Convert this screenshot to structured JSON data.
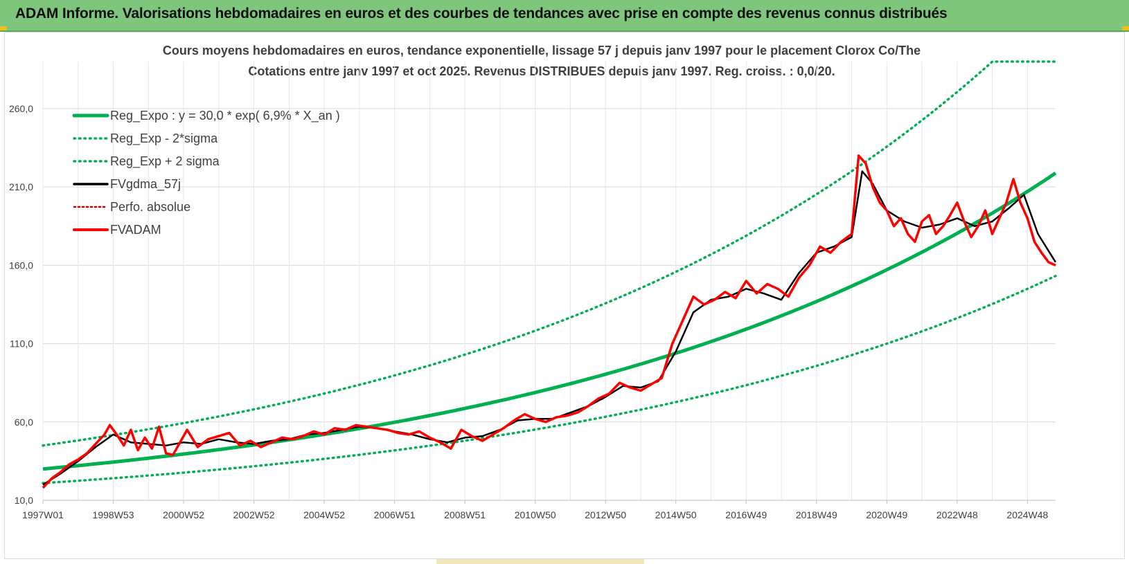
{
  "header": {
    "title": "ADAM Informe. Valorisations hebdomadaires en euros et des courbes de tendances avec prise en compte des revenus connus distribués"
  },
  "colors": {
    "banner": "#7dc67c",
    "trend": "#00b050",
    "red": "#ff0000",
    "black": "#000000",
    "perfo": "#c00000",
    "grid": "#d9d9d9"
  },
  "chart_data": {
    "type": "line",
    "title": "Cours moyens hebdomadaires en euros, tendance exponentielle, lissage 57 j depuis janv 1997 pour le placement Clorox Co/The",
    "subtitle": "Cotations entre janv 1997 et oct 2025. Revenus DISTRIBUES depuis janv 1997. Reg. croiss. : 0,0/20.",
    "xlabel": "",
    "ylabel": "",
    "ylim": [
      10,
      290
    ],
    "xlim": [
      1997.0,
      2025.8
    ],
    "yticks": [
      10,
      60,
      110,
      160,
      210,
      260
    ],
    "ytick_labels": [
      "10,0",
      "60,0",
      "110,0",
      "160,0",
      "210,0",
      "260,0"
    ],
    "xticks": [
      1997.0,
      1999.0,
      2001.0,
      2003.0,
      2005.0,
      2007.0,
      2009.0,
      2011.0,
      2013.0,
      2015.0,
      2017.0,
      2019.0,
      2021.0,
      2023.0,
      2025.0
    ],
    "xtick_labels": [
      "1997W01",
      "1998W53",
      "2000W52",
      "2002W52",
      "2004W52",
      "2006W51",
      "2008W51",
      "2010W50",
      "2012W50",
      "2014W50",
      "2016W49",
      "2018W49",
      "2020W49",
      "2022W48",
      "2024W48"
    ],
    "grid": true,
    "legend_position": "top-left",
    "legend": [
      {
        "label": "Reg_Expo : y = 30,0 * exp( 6,9% *  X_an )",
        "style": "solid-green"
      },
      {
        "label": "Reg_Exp - 2*sigma",
        "style": "dotted-green"
      },
      {
        "label": "Reg_Exp + 2 sigma",
        "style": "dotted-green"
      },
      {
        "label": "FVgdma_57j",
        "style": "solid-black"
      },
      {
        "label": "Perfo. absolue",
        "style": "dotted-darkred"
      },
      {
        "label": "FVADAM",
        "style": "solid-red"
      }
    ],
    "trend": {
      "a": 30.0,
      "rate": 0.069,
      "x0": 1997.0,
      "upper_cap": 290
    },
    "series": [
      {
        "name": "FVADAM",
        "x": [
          1997.0,
          1997.25,
          1997.5,
          1997.75,
          1998.0,
          1998.25,
          1998.5,
          1998.75,
          1998.9,
          1999.1,
          1999.3,
          1999.5,
          1999.7,
          1999.9,
          2000.1,
          2000.3,
          2000.5,
          2000.7,
          2000.9,
          2001.1,
          2001.4,
          2001.7,
          2002.0,
          2002.3,
          2002.6,
          2002.9,
          2003.2,
          2003.5,
          2003.8,
          2004.1,
          2004.4,
          2004.7,
          2005.0,
          2005.3,
          2005.6,
          2005.9,
          2006.2,
          2006.5,
          2006.8,
          2007.1,
          2007.4,
          2007.7,
          2008.0,
          2008.3,
          2008.6,
          2008.9,
          2009.2,
          2009.5,
          2009.8,
          2010.1,
          2010.4,
          2010.7,
          2011.0,
          2011.3,
          2011.6,
          2011.9,
          2012.2,
          2012.5,
          2012.8,
          2013.1,
          2013.4,
          2013.7,
          2014.0,
          2014.3,
          2014.6,
          2014.9,
          2015.2,
          2015.5,
          2015.8,
          2016.1,
          2016.4,
          2016.7,
          2017.0,
          2017.3,
          2017.6,
          2017.9,
          2018.2,
          2018.5,
          2018.8,
          2019.1,
          2019.4,
          2019.7,
          2020.0,
          2020.2,
          2020.4,
          2020.6,
          2020.8,
          2021.0,
          2021.2,
          2021.4,
          2021.6,
          2021.8,
          2022.0,
          2022.2,
          2022.4,
          2022.6,
          2022.8,
          2023.0,
          2023.2,
          2023.4,
          2023.6,
          2023.8,
          2024.0,
          2024.2,
          2024.4,
          2024.6,
          2024.8,
          2025.0,
          2025.2,
          2025.4,
          2025.6,
          2025.8
        ],
        "values": [
          18,
          24,
          28,
          33,
          36,
          40,
          46,
          52,
          58,
          52,
          45,
          55,
          42,
          50,
          43,
          57,
          40,
          39,
          47,
          55,
          44,
          49,
          51,
          53,
          45,
          48,
          44,
          47,
          50,
          49,
          51,
          54,
          52,
          56,
          55,
          58,
          57,
          56,
          55,
          53,
          52,
          54,
          50,
          47,
          43,
          55,
          51,
          48,
          52,
          56,
          61,
          65,
          62,
          60,
          63,
          64,
          66,
          70,
          75,
          78,
          85,
          82,
          80,
          84,
          88,
          110,
          125,
          140,
          135,
          138,
          143,
          139,
          150,
          142,
          148,
          145,
          140,
          152,
          160,
          172,
          168,
          175,
          180,
          230,
          225,
          210,
          200,
          195,
          185,
          190,
          180,
          175,
          188,
          192,
          180,
          185,
          192,
          200,
          188,
          178,
          185,
          195,
          180,
          190,
          200,
          215,
          200,
          190,
          175,
          168,
          162,
          160
        ]
      },
      {
        "name": "FVgdma_57j",
        "x": [
          1997.0,
          1997.5,
          1998.0,
          1998.5,
          1999.0,
          1999.5,
          2000.0,
          2000.5,
          2001.0,
          2001.5,
          2002.0,
          2002.5,
          2003.0,
          2003.5,
          2004.0,
          2004.5,
          2005.0,
          2005.5,
          2006.0,
          2006.5,
          2007.0,
          2007.5,
          2008.0,
          2008.5,
          2009.0,
          2009.5,
          2010.0,
          2010.5,
          2011.0,
          2011.5,
          2012.0,
          2012.5,
          2013.0,
          2013.5,
          2014.0,
          2014.5,
          2015.0,
          2015.5,
          2016.0,
          2016.5,
          2017.0,
          2017.5,
          2018.0,
          2018.5,
          2019.0,
          2019.5,
          2020.0,
          2020.3,
          2020.6,
          2021.0,
          2021.5,
          2022.0,
          2022.5,
          2023.0,
          2023.5,
          2024.0,
          2024.5,
          2024.9,
          2025.3,
          2025.8
        ],
        "values": [
          20,
          27,
          35,
          44,
          52,
          47,
          46,
          45,
          47,
          46,
          49,
          47,
          46,
          48,
          49,
          52,
          53,
          55,
          57,
          56,
          54,
          52,
          49,
          47,
          50,
          51,
          55,
          61,
          62,
          62,
          66,
          70,
          76,
          83,
          82,
          86,
          105,
          130,
          138,
          140,
          145,
          142,
          138,
          155,
          168,
          172,
          178,
          220,
          212,
          195,
          188,
          184,
          186,
          190,
          185,
          188,
          197,
          205,
          180,
          162
        ]
      }
    ]
  }
}
